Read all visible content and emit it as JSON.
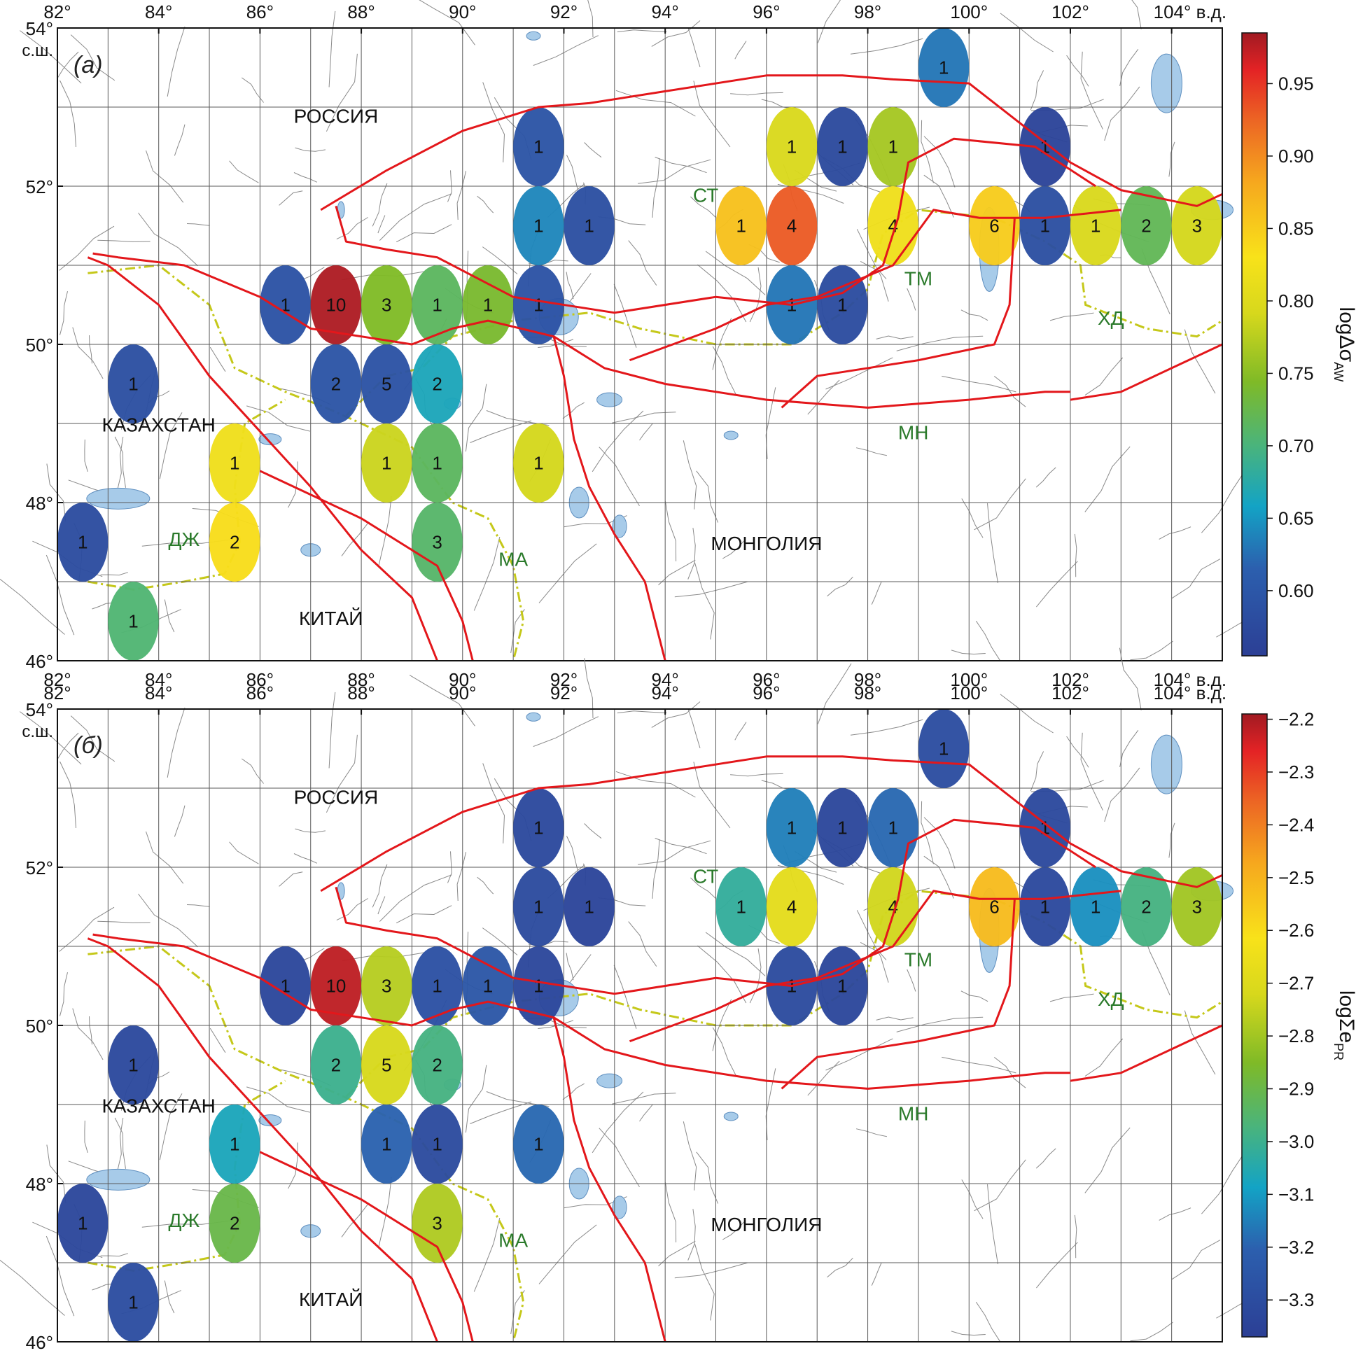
{
  "panels": [
    {
      "id": "a",
      "panel_label": "(а)",
      "colorbar": {
        "label": "logΔσ",
        "label_sub": "AW",
        "ticks": [
          "0.95",
          "0.90",
          "0.85",
          "0.80",
          "0.75",
          "0.70",
          "0.65",
          "0.60"
        ],
        "tick_values": [
          0.95,
          0.9,
          0.85,
          0.8,
          0.75,
          0.7,
          0.65,
          0.6
        ],
        "min": 0.555,
        "max": 0.985
      },
      "cells": [
        {
          "lon": 99.5,
          "lat": 53.5,
          "n": "1",
          "v": 0.63
        },
        {
          "lon": 91.5,
          "lat": 52.5,
          "n": "1",
          "v": 0.595
        },
        {
          "lon": 96.5,
          "lat": 52.5,
          "n": "1",
          "v": 0.795
        },
        {
          "lon": 97.5,
          "lat": 52.5,
          "n": "1",
          "v": 0.575
        },
        {
          "lon": 98.5,
          "lat": 52.5,
          "n": "1",
          "v": 0.765
        },
        {
          "lon": 101.5,
          "lat": 52.5,
          "n": "1",
          "v": 0.565
        },
        {
          "lon": 91.5,
          "lat": 51.5,
          "n": "1",
          "v": 0.64
        },
        {
          "lon": 92.5,
          "lat": 51.5,
          "n": "1",
          "v": 0.585
        },
        {
          "lon": 95.5,
          "lat": 51.5,
          "n": "1",
          "v": 0.86
        },
        {
          "lon": 96.5,
          "lat": 51.5,
          "n": "4",
          "v": 0.93
        },
        {
          "lon": 98.5,
          "lat": 51.5,
          "n": "4",
          "v": 0.82
        },
        {
          "lon": 100.5,
          "lat": 51.5,
          "n": "6",
          "v": 0.85
        },
        {
          "lon": 101.5,
          "lat": 51.5,
          "n": "1",
          "v": 0.585
        },
        {
          "lon": 102.5,
          "lat": 51.5,
          "n": "1",
          "v": 0.795
        },
        {
          "lon": 103.5,
          "lat": 51.5,
          "n": "2",
          "v": 0.72
        },
        {
          "lon": 104.5,
          "lat": 51.5,
          "n": "3",
          "v": 0.79
        },
        {
          "lon": 86.5,
          "lat": 50.5,
          "n": "1",
          "v": 0.59
        },
        {
          "lon": 87.5,
          "lat": 50.5,
          "n": "10",
          "v": 0.98
        },
        {
          "lon": 88.5,
          "lat": 50.5,
          "n": "3",
          "v": 0.745
        },
        {
          "lon": 89.5,
          "lat": 50.5,
          "n": "1",
          "v": 0.715
        },
        {
          "lon": 90.5,
          "lat": 50.5,
          "n": "1",
          "v": 0.74
        },
        {
          "lon": 91.5,
          "lat": 50.5,
          "n": "1",
          "v": 0.59
        },
        {
          "lon": 96.5,
          "lat": 50.5,
          "n": "1",
          "v": 0.63
        },
        {
          "lon": 97.5,
          "lat": 50.5,
          "n": "1",
          "v": 0.58
        },
        {
          "lon": 83.5,
          "lat": 49.5,
          "n": "1",
          "v": 0.585
        },
        {
          "lon": 87.5,
          "lat": 49.5,
          "n": "2",
          "v": 0.595
        },
        {
          "lon": 88.5,
          "lat": 49.5,
          "n": "5",
          "v": 0.59
        },
        {
          "lon": 89.5,
          "lat": 49.5,
          "n": "2",
          "v": 0.665
        },
        {
          "lon": 85.5,
          "lat": 48.5,
          "n": "1",
          "v": 0.82
        },
        {
          "lon": 88.5,
          "lat": 48.5,
          "n": "1",
          "v": 0.785
        },
        {
          "lon": 89.5,
          "lat": 48.5,
          "n": "1",
          "v": 0.715
        },
        {
          "lon": 91.5,
          "lat": 48.5,
          "n": "1",
          "v": 0.79
        },
        {
          "lon": 82.5,
          "lat": 47.5,
          "n": "1",
          "v": 0.58
        },
        {
          "lon": 85.5,
          "lat": 47.5,
          "n": "2",
          "v": 0.835
        },
        {
          "lon": 89.5,
          "lat": 47.5,
          "n": "3",
          "v": 0.71
        },
        {
          "lon": 83.5,
          "lat": 46.5,
          "n": "1",
          "v": 0.705
        }
      ]
    },
    {
      "id": "b",
      "panel_label": "(б)",
      "colorbar": {
        "label": "logΣe",
        "label_sub": "PR",
        "ticks": [
          "−2.2",
          "−2.3",
          "−2.4",
          "−2.5",
          "−2.6",
          "−2.7",
          "−2.8",
          "−2.9",
          "−3.0",
          "−3.1",
          "−3.2",
          "−3.3"
        ],
        "tick_values": [
          -2.2,
          -2.3,
          -2.4,
          -2.5,
          -2.6,
          -2.7,
          -2.8,
          -2.9,
          -3.0,
          -3.1,
          -3.2,
          -3.3
        ],
        "min": -3.37,
        "max": -2.19
      },
      "cells": [
        {
          "lon": 99.5,
          "lat": 53.5,
          "n": "1",
          "v": -3.3
        },
        {
          "lon": 91.5,
          "lat": 52.5,
          "n": "1",
          "v": -3.32
        },
        {
          "lon": 96.5,
          "lat": 52.5,
          "n": "1",
          "v": -3.15
        },
        {
          "lon": 97.5,
          "lat": 52.5,
          "n": "1",
          "v": -3.33
        },
        {
          "lon": 98.5,
          "lat": 52.5,
          "n": "1",
          "v": -3.19
        },
        {
          "lon": 101.5,
          "lat": 52.5,
          "n": "1",
          "v": -3.32
        },
        {
          "lon": 91.5,
          "lat": 51.5,
          "n": "1",
          "v": -3.31
        },
        {
          "lon": 92.5,
          "lat": 51.5,
          "n": "1",
          "v": -3.34
        },
        {
          "lon": 95.5,
          "lat": 51.5,
          "n": "1",
          "v": -3.02
        },
        {
          "lon": 96.5,
          "lat": 51.5,
          "n": "4",
          "v": -2.68
        },
        {
          "lon": 98.5,
          "lat": 51.5,
          "n": "4",
          "v": -2.73
        },
        {
          "lon": 100.5,
          "lat": 51.5,
          "n": "6",
          "v": -2.52
        },
        {
          "lon": 101.5,
          "lat": 51.5,
          "n": "1",
          "v": -3.32
        },
        {
          "lon": 102.5,
          "lat": 51.5,
          "n": "1",
          "v": -3.12
        },
        {
          "lon": 103.5,
          "lat": 51.5,
          "n": "2",
          "v": -2.98
        },
        {
          "lon": 104.5,
          "lat": 51.5,
          "n": "3",
          "v": -2.8
        },
        {
          "lon": 86.5,
          "lat": 50.5,
          "n": "1",
          "v": -3.33
        },
        {
          "lon": 87.5,
          "lat": 50.5,
          "n": "10",
          "v": -2.22
        },
        {
          "lon": 88.5,
          "lat": 50.5,
          "n": "3",
          "v": -2.77
        },
        {
          "lon": 89.5,
          "lat": 50.5,
          "n": "1",
          "v": -3.28
        },
        {
          "lon": 90.5,
          "lat": 50.5,
          "n": "1",
          "v": -3.25
        },
        {
          "lon": 91.5,
          "lat": 50.5,
          "n": "1",
          "v": -3.33
        },
        {
          "lon": 96.5,
          "lat": 50.5,
          "n": "1",
          "v": -3.31
        },
        {
          "lon": 97.5,
          "lat": 50.5,
          "n": "1",
          "v": -3.33
        },
        {
          "lon": 83.5,
          "lat": 49.5,
          "n": "1",
          "v": -3.32
        },
        {
          "lon": 87.5,
          "lat": 49.5,
          "n": "2",
          "v": -3.0
        },
        {
          "lon": 88.5,
          "lat": 49.5,
          "n": "5",
          "v": -2.72
        },
        {
          "lon": 89.5,
          "lat": 49.5,
          "n": "2",
          "v": -2.98
        },
        {
          "lon": 85.5,
          "lat": 48.5,
          "n": "1",
          "v": -3.07
        },
        {
          "lon": 88.5,
          "lat": 48.5,
          "n": "1",
          "v": -3.2
        },
        {
          "lon": 89.5,
          "lat": 48.5,
          "n": "1",
          "v": -3.31
        },
        {
          "lon": 91.5,
          "lat": 48.5,
          "n": "1",
          "v": -3.19
        },
        {
          "lon": 82.5,
          "lat": 47.5,
          "n": "1",
          "v": -3.33
        },
        {
          "lon": 85.5,
          "lat": 47.5,
          "n": "2",
          "v": -2.9
        },
        {
          "lon": 89.5,
          "lat": 47.5,
          "n": "3",
          "v": -2.78
        },
        {
          "lon": 83.5,
          "lat": 46.5,
          "n": "1",
          "v": -3.3
        }
      ]
    }
  ],
  "axis": {
    "lon_ticks": [
      "82°",
      "84°",
      "86°",
      "88°",
      "90°",
      "92°",
      "94°",
      "96°",
      "98°",
      "100°",
      "102°",
      "104° в.д."
    ],
    "lon_tick_values": [
      82,
      84,
      86,
      88,
      90,
      92,
      94,
      96,
      98,
      100,
      102,
      104
    ],
    "lat_ticks": [
      "54°",
      "52°",
      "50°",
      "48°",
      "46°"
    ],
    "lat_tick_values": [
      54,
      52,
      50,
      48,
      46
    ],
    "lat_unit": "с.ш.",
    "lon_range": [
      82,
      105
    ],
    "lat_range": [
      46,
      54
    ]
  },
  "place_labels": {
    "countries": [
      {
        "text": "РОССИЯ",
        "lon": 87.5,
        "lat": 52.8
      },
      {
        "text": "КАЗАХСТАН",
        "lon": 84.0,
        "lat": 48.9
      },
      {
        "text": "МОНГОЛИЯ",
        "lon": 96.0,
        "lat": 47.4
      },
      {
        "text": "КИТАЙ",
        "lon": 87.4,
        "lat": 46.45
      }
    ],
    "regions": [
      {
        "text": "СТ",
        "lon": 94.8,
        "lat": 51.8
      },
      {
        "text": "ТМ",
        "lon": 99.0,
        "lat": 50.75
      },
      {
        "text": "ХД",
        "lon": 102.8,
        "lat": 50.25
      },
      {
        "text": "МН",
        "lon": 98.9,
        "lat": 48.8
      },
      {
        "text": "ДЖ",
        "lon": 84.5,
        "lat": 47.45
      },
      {
        "text": "МА",
        "lon": 91.0,
        "lat": 47.2
      }
    ]
  },
  "colors": {
    "fault": "#e3171b",
    "border": "#c5c81a",
    "lake": "#a7cbe9",
    "grid": "#5a5a5a",
    "region_label": "#2b7a2b"
  }
}
